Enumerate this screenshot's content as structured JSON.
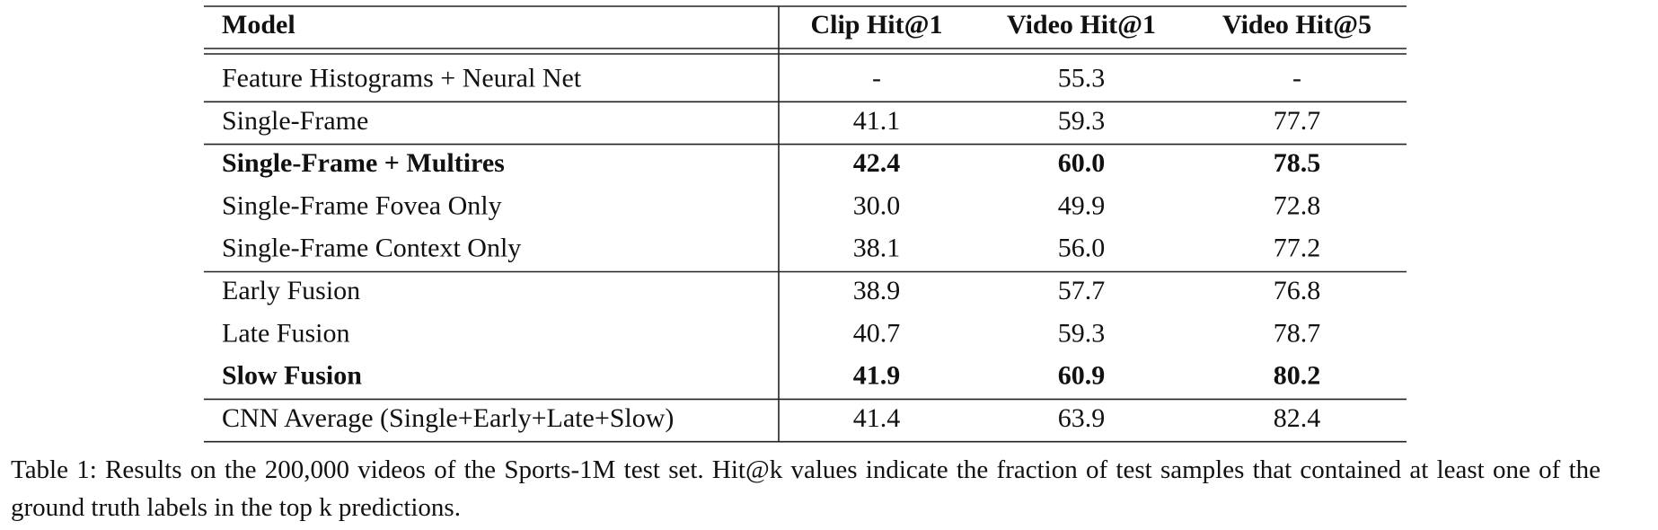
{
  "table": {
    "header": [
      "Model",
      "Clip Hit@1",
      "Video Hit@1",
      "Video Hit@5"
    ],
    "groups": [
      {
        "rows": [
          {
            "cells": [
              "Feature Histograms + Neural Net",
              "-",
              "55.3",
              "-"
            ]
          }
        ]
      },
      {
        "rows": [
          {
            "cells": [
              "Single-Frame",
              "41.1",
              "59.3",
              "77.7"
            ]
          }
        ]
      },
      {
        "rows": [
          {
            "cells": [
              "Single-Frame + Multires",
              "42.4",
              "60.0",
              "78.5"
            ],
            "bold": true
          },
          {
            "cells": [
              "Single-Frame Fovea Only",
              "30.0",
              "49.9",
              "72.8"
            ]
          },
          {
            "cells": [
              "Single-Frame Context Only",
              "38.1",
              "56.0",
              "77.2"
            ]
          }
        ]
      },
      {
        "rows": [
          {
            "cells": [
              "Early Fusion",
              "38.9",
              "57.7",
              "76.8"
            ]
          },
          {
            "cells": [
              "Late Fusion",
              "40.7",
              "59.3",
              "78.7"
            ]
          },
          {
            "cells": [
              "Slow Fusion",
              "41.9",
              "60.9",
              "80.2"
            ],
            "bold": true
          }
        ]
      },
      {
        "rows": [
          {
            "cells": [
              "CNN Average (Single+Early+Late+Slow)",
              "41.4",
              "63.9",
              "82.4"
            ]
          }
        ]
      }
    ]
  },
  "caption": "Table 1: Results on the 200,000 videos of the Sports-1M test set. Hit@k values indicate the fraction of test samples that contained at least one of the ground truth labels in the top k predictions."
}
